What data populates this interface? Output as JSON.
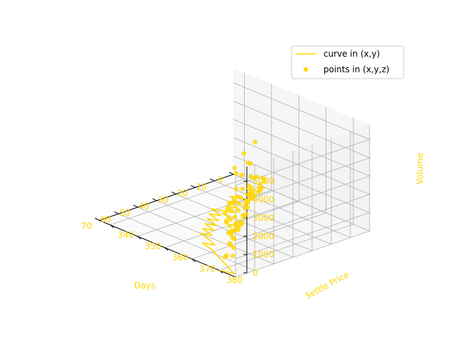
{
  "chart_data": {
    "type": "scatter",
    "projection": "3d",
    "accent_color": "#FFD700",
    "axis_text_color": "#FFD700",
    "grid": true,
    "legend_position": "upper right",
    "xlabel": "Days",
    "ylabel": "Settle Price",
    "zlabel": "Volume",
    "xticks": [
      "0",
      "10",
      "20",
      "30",
      "40",
      "50",
      "60",
      "70"
    ],
    "yticks": [
      "340",
      "350",
      "360",
      "370",
      "380"
    ],
    "zticks": [
      "0",
      "1000",
      "2000",
      "3000",
      "4000",
      "5000"
    ],
    "xlim": [
      0,
      70
    ],
    "ylim": [
      336,
      386
    ],
    "zlim": [
      0,
      5800
    ],
    "legend": [
      {
        "label": "curve in (x,y)",
        "marker": "line"
      },
      {
        "label": "points in (x,y,z)",
        "marker": "dot"
      }
    ],
    "series": [
      {
        "name": "curve in (x,y)",
        "kind": "line",
        "x": [
          0,
          2,
          4,
          6,
          8,
          10,
          12,
          14,
          16,
          18,
          20,
          22,
          24,
          26,
          28,
          30,
          32,
          34,
          36,
          38,
          40,
          42,
          44,
          46,
          48,
          50,
          52,
          54,
          56,
          58,
          60,
          62,
          64,
          66,
          68,
          70
        ],
        "y": [
          348,
          346,
          349,
          345,
          350,
          347,
          352,
          349,
          346,
          351,
          348,
          353,
          350,
          355,
          352,
          349,
          354,
          351,
          356,
          353,
          358,
          355,
          360,
          357,
          362,
          359,
          364,
          367,
          364,
          369,
          372,
          375,
          378,
          381,
          384,
          380
        ]
      },
      {
        "name": "points in (x,y,z)",
        "kind": "scatter",
        "points": [
          {
            "x": 0,
            "y": 347,
            "z": 480
          },
          {
            "x": 1,
            "y": 348,
            "z": 410
          },
          {
            "x": 2,
            "y": 346,
            "z": 560
          },
          {
            "x": 3,
            "y": 348,
            "z": 300
          },
          {
            "x": 4,
            "y": 349,
            "z": 180
          },
          {
            "x": 5,
            "y": 347,
            "z": 650
          },
          {
            "x": 6,
            "y": 346,
            "z": 220
          },
          {
            "x": 7,
            "y": 350,
            "z": 140
          },
          {
            "x": 8,
            "y": 348,
            "z": 920
          },
          {
            "x": 9,
            "y": 349,
            "z": 380
          },
          {
            "x": 10,
            "y": 351,
            "z": 3050
          },
          {
            "x": 11,
            "y": 350,
            "z": 1850
          },
          {
            "x": 12,
            "y": 352,
            "z": 260
          },
          {
            "x": 13,
            "y": 351,
            "z": 340
          },
          {
            "x": 14,
            "y": 353,
            "z": 620
          },
          {
            "x": 15,
            "y": 352,
            "z": 2150
          },
          {
            "x": 16,
            "y": 354,
            "z": 410
          },
          {
            "x": 17,
            "y": 353,
            "z": 200
          },
          {
            "x": 18,
            "y": 355,
            "z": 720
          },
          {
            "x": 19,
            "y": 354,
            "z": 330
          },
          {
            "x": 20,
            "y": 356,
            "z": 880
          },
          {
            "x": 21,
            "y": 355,
            "z": 240
          },
          {
            "x": 22,
            "y": 357,
            "z": 560
          },
          {
            "x": 23,
            "y": 356,
            "z": 3200
          },
          {
            "x": 24,
            "y": 358,
            "z": 430
          },
          {
            "x": 25,
            "y": 357,
            "z": 1400
          },
          {
            "x": 26,
            "y": 359,
            "z": 180
          },
          {
            "x": 27,
            "y": 358,
            "z": 2300
          },
          {
            "x": 28,
            "y": 360,
            "z": 640
          },
          {
            "x": 29,
            "y": 359,
            "z": 1200
          },
          {
            "x": 30,
            "y": 361,
            "z": 300
          },
          {
            "x": 31,
            "y": 360,
            "z": 980
          },
          {
            "x": 32,
            "y": 362,
            "z": 520
          },
          {
            "x": 33,
            "y": 361,
            "z": 760
          },
          {
            "x": 34,
            "y": 363,
            "z": 210
          },
          {
            "x": 35,
            "y": 362,
            "z": 1650
          },
          {
            "x": 36,
            "y": 364,
            "z": 450
          },
          {
            "x": 37,
            "y": 363,
            "z": 3050
          },
          {
            "x": 38,
            "y": 365,
            "z": 370
          },
          {
            "x": 39,
            "y": 364,
            "z": 800
          },
          {
            "x": 40,
            "y": 366,
            "z": 260
          },
          {
            "x": 41,
            "y": 365,
            "z": 1850
          },
          {
            "x": 42,
            "y": 367,
            "z": 540
          },
          {
            "x": 43,
            "y": 366,
            "z": 300
          },
          {
            "x": 44,
            "y": 368,
            "z": 900
          },
          {
            "x": 45,
            "y": 367,
            "z": 420
          },
          {
            "x": 46,
            "y": 369,
            "z": 650
          },
          {
            "x": 47,
            "y": 368,
            "z": 1200
          },
          {
            "x": 48,
            "y": 370,
            "z": 310
          },
          {
            "x": 49,
            "y": 369,
            "z": 2200
          },
          {
            "x": 50,
            "y": 371,
            "z": 480
          },
          {
            "x": 51,
            "y": 370,
            "z": 740
          },
          {
            "x": 52,
            "y": 372,
            "z": 1000
          },
          {
            "x": 53,
            "y": 371,
            "z": 2150
          },
          {
            "x": 54,
            "y": 373,
            "z": 380
          },
          {
            "x": 55,
            "y": 372,
            "z": 1650
          },
          {
            "x": 56,
            "y": 374,
            "z": 600
          },
          {
            "x": 57,
            "y": 373,
            "z": 2200
          },
          {
            "x": 58,
            "y": 376,
            "z": 2600
          },
          {
            "x": 59,
            "y": 375,
            "z": 1900
          },
          {
            "x": 60,
            "y": 378,
            "z": 3200
          },
          {
            "x": 61,
            "y": 377,
            "z": 2400
          },
          {
            "x": 62,
            "y": 380,
            "z": 5300
          },
          {
            "x": 63,
            "y": 379,
            "z": 2100
          },
          {
            "x": 64,
            "y": 382,
            "z": 4350
          },
          {
            "x": 65,
            "y": 381,
            "z": 1800
          },
          {
            "x": 66,
            "y": 383,
            "z": 2500
          },
          {
            "x": 67,
            "y": 380,
            "z": 600
          },
          {
            "x": 68,
            "y": 384,
            "z": 1400
          },
          {
            "x": 69,
            "y": 382,
            "z": 900
          },
          {
            "x": 70,
            "y": 385,
            "z": 1100
          }
        ]
      }
    ]
  }
}
